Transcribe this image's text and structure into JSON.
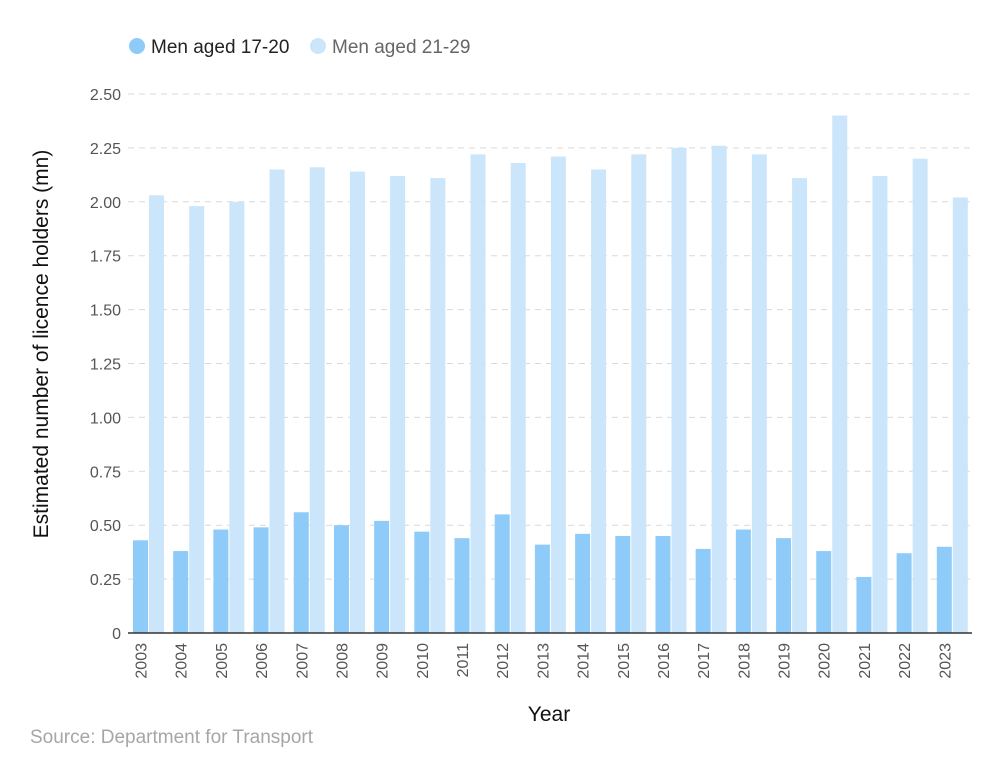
{
  "chart_data": {
    "type": "bar",
    "title": "",
    "xlabel": "Year",
    "ylabel": "Estimated number of licence holders (mn)",
    "ylim": [
      0,
      2.5
    ],
    "yticks": [
      "0",
      "0.25",
      "0.50",
      "0.75",
      "1.00",
      "1.25",
      "1.50",
      "1.75",
      "2.00",
      "2.25",
      "2.50"
    ],
    "grid": "horizontal dashed",
    "legend_position": "top-left",
    "categories": [
      "2003",
      "2004",
      "2005",
      "2006",
      "2007",
      "2008",
      "2009",
      "2010",
      "2011",
      "2012",
      "2013",
      "2014",
      "2015",
      "2016",
      "2017",
      "2018",
      "2019",
      "2020",
      "2021",
      "2022",
      "2023"
    ],
    "series": [
      {
        "name": "Men aged 17-20",
        "color": "#8ecbf8",
        "values": [
          0.43,
          0.38,
          0.48,
          0.49,
          0.56,
          0.5,
          0.52,
          0.47,
          0.44,
          0.55,
          0.41,
          0.46,
          0.45,
          0.45,
          0.39,
          0.48,
          0.44,
          0.38,
          0.26,
          0.37,
          0.4
        ]
      },
      {
        "name": "Men aged 21-29",
        "color": "#cbe6fb",
        "values": [
          2.03,
          1.98,
          2.0,
          2.15,
          2.16,
          2.14,
          2.12,
          2.11,
          2.22,
          2.18,
          2.21,
          2.15,
          2.22,
          2.25,
          2.26,
          2.22,
          2.11,
          2.4,
          2.12,
          2.2,
          2.02
        ]
      }
    ],
    "legend_text_colors": [
      "#222222",
      "#666666"
    ]
  },
  "source": "Source: Department for Transport"
}
